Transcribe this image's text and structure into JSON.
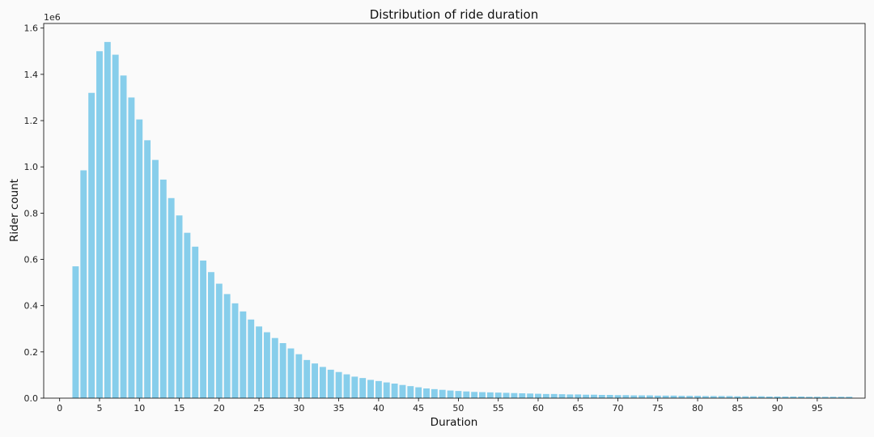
{
  "chart_data": {
    "type": "bar",
    "title": "Distribution of ride duration",
    "xlabel": "Duration",
    "ylabel": "Rider count",
    "y_offset_text": "1e6",
    "xlim": [
      -2,
      101
    ],
    "ylim": [
      0,
      1.62
    ],
    "xticks": [
      0,
      5,
      10,
      15,
      20,
      25,
      30,
      35,
      40,
      45,
      50,
      55,
      60,
      65,
      70,
      75,
      80,
      85,
      90,
      95
    ],
    "yticks": [
      0.0,
      0.2,
      0.4,
      0.6,
      0.8,
      1.0,
      1.2,
      1.4,
      1.6
    ],
    "ytick_labels": [
      "0.0",
      "0.2",
      "0.4",
      "0.6",
      "0.8",
      "1.0",
      "1.2",
      "1.4",
      "1.6"
    ],
    "grid": false,
    "colors": {
      "bar": "#87ceeb",
      "axes": "#000000",
      "background": "#fafafa"
    },
    "x": [
      2,
      3,
      4,
      5,
      6,
      7,
      8,
      9,
      10,
      11,
      12,
      13,
      14,
      15,
      16,
      17,
      18,
      19,
      20,
      21,
      22,
      23,
      24,
      25,
      26,
      27,
      28,
      29,
      30,
      31,
      32,
      33,
      34,
      35,
      36,
      37,
      38,
      39,
      40,
      41,
      42,
      43,
      44,
      45,
      46,
      47,
      48,
      49,
      50,
      51,
      52,
      53,
      54,
      55,
      56,
      57,
      58,
      59,
      60,
      61,
      62,
      63,
      64,
      65,
      66,
      67,
      68,
      69,
      70,
      71,
      72,
      73,
      74,
      75,
      76,
      77,
      78,
      79,
      80,
      81,
      82,
      83,
      84,
      85,
      86,
      87,
      88,
      89,
      90,
      91,
      92,
      93,
      94,
      95,
      96,
      97,
      98,
      99
    ],
    "values": [
      0.57,
      0.985,
      1.32,
      1.5,
      1.54,
      1.485,
      1.395,
      1.3,
      1.205,
      1.115,
      1.03,
      0.945,
      0.865,
      0.79,
      0.715,
      0.655,
      0.595,
      0.545,
      0.495,
      0.45,
      0.41,
      0.375,
      0.34,
      0.31,
      0.285,
      0.26,
      0.238,
      0.215,
      0.19,
      0.165,
      0.15,
      0.135,
      0.123,
      0.113,
      0.103,
      0.093,
      0.087,
      0.079,
      0.074,
      0.068,
      0.063,
      0.057,
      0.052,
      0.047,
      0.042,
      0.039,
      0.036,
      0.033,
      0.031,
      0.029,
      0.027,
      0.026,
      0.025,
      0.024,
      0.023,
      0.022,
      0.021,
      0.02,
      0.019,
      0.018,
      0.018,
      0.017,
      0.016,
      0.016,
      0.015,
      0.015,
      0.014,
      0.014,
      0.013,
      0.013,
      0.012,
      0.012,
      0.012,
      0.011,
      0.011,
      0.011,
      0.01,
      0.01,
      0.01,
      0.009,
      0.009,
      0.009,
      0.009,
      0.008,
      0.008,
      0.008,
      0.008,
      0.007,
      0.007,
      0.007,
      0.007,
      0.007,
      0.006,
      0.006,
      0.006,
      0.006,
      0.006,
      0.006
    ]
  }
}
